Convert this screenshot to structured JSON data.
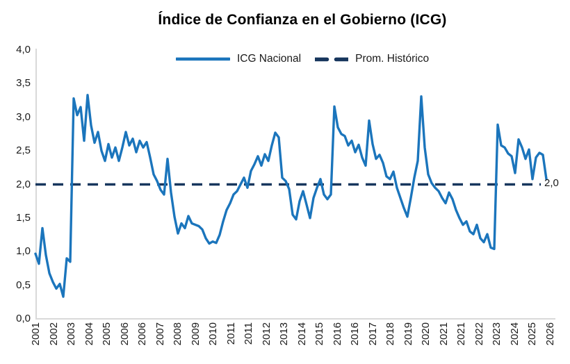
{
  "chart_data": {
    "type": "line",
    "title": "Índice de Confianza en el Gobierno (ICG)",
    "ylim": [
      0.0,
      4.0
    ],
    "y_tick_step": 0.5,
    "decimal_separator": ",",
    "grid": false,
    "legend_position": "top",
    "y_tick_labels": [
      "4,0",
      "3,5",
      "3,0",
      "2,5",
      "2,0",
      "1,5",
      "1,0",
      "0,5",
      "0,0"
    ],
    "x_tick_labels": [
      "2001",
      "2002",
      "2003",
      "2004",
      "2005",
      "2006",
      "2006",
      "2007",
      "2008",
      "2009",
      "2010",
      "2011",
      "2011",
      "2012",
      "2013",
      "2014",
      "2015",
      "2016",
      "2016",
      "2017",
      "2018",
      "2019",
      "2020",
      "2021",
      "2021",
      "2022",
      "2023",
      "2024",
      "2025",
      "2026"
    ],
    "series": [
      {
        "name": "ICG Nacional",
        "color": "#1B75BC",
        "style": "solid",
        "values": [
          0.97,
          0.82,
          1.35,
          0.95,
          0.68,
          0.55,
          0.45,
          0.52,
          0.33,
          0.9,
          0.85,
          3.28,
          3.03,
          3.15,
          2.65,
          3.33,
          2.88,
          2.62,
          2.78,
          2.5,
          2.35,
          2.6,
          2.4,
          2.55,
          2.35,
          2.55,
          2.78,
          2.58,
          2.68,
          2.48,
          2.65,
          2.55,
          2.63,
          2.4,
          2.15,
          2.05,
          1.92,
          1.85,
          2.38,
          1.88,
          1.52,
          1.27,
          1.42,
          1.35,
          1.53,
          1.42,
          1.4,
          1.38,
          1.33,
          1.2,
          1.12,
          1.15,
          1.13,
          1.25,
          1.45,
          1.62,
          1.72,
          1.85,
          1.9,
          2.0,
          2.1,
          1.95,
          2.2,
          2.3,
          2.42,
          2.28,
          2.45,
          2.35,
          2.58,
          2.77,
          2.7,
          2.1,
          2.05,
          1.93,
          1.55,
          1.48,
          1.75,
          1.9,
          1.7,
          1.5,
          1.8,
          1.95,
          2.08,
          1.85,
          1.78,
          1.85,
          3.16,
          2.85,
          2.75,
          2.72,
          2.58,
          2.65,
          2.48,
          2.59,
          2.4,
          2.28,
          2.95,
          2.6,
          2.38,
          2.44,
          2.32,
          2.12,
          2.08,
          2.19,
          1.95,
          1.8,
          1.65,
          1.52,
          1.8,
          2.1,
          2.35,
          3.31,
          2.55,
          2.15,
          2.02,
          1.95,
          1.9,
          1.8,
          1.72,
          1.88,
          1.78,
          1.62,
          1.5,
          1.4,
          1.45,
          1.3,
          1.26,
          1.4,
          1.2,
          1.14,
          1.26,
          1.06,
          1.04,
          2.89,
          2.58,
          2.55,
          2.46,
          2.42,
          2.17,
          2.67,
          2.55,
          2.38,
          2.52,
          2.08,
          2.4,
          2.47,
          2.44,
          2.08
        ]
      }
    ],
    "reference_line": {
      "name": "Prom. Histórico",
      "value": 2.0,
      "label": "2,0",
      "color": "#17365D",
      "style": "dashed"
    },
    "colors": {
      "series": "#1B75BC",
      "reference": "#17365D",
      "axis_line": "#D9D9D9",
      "text": "#1A1A1A"
    }
  }
}
